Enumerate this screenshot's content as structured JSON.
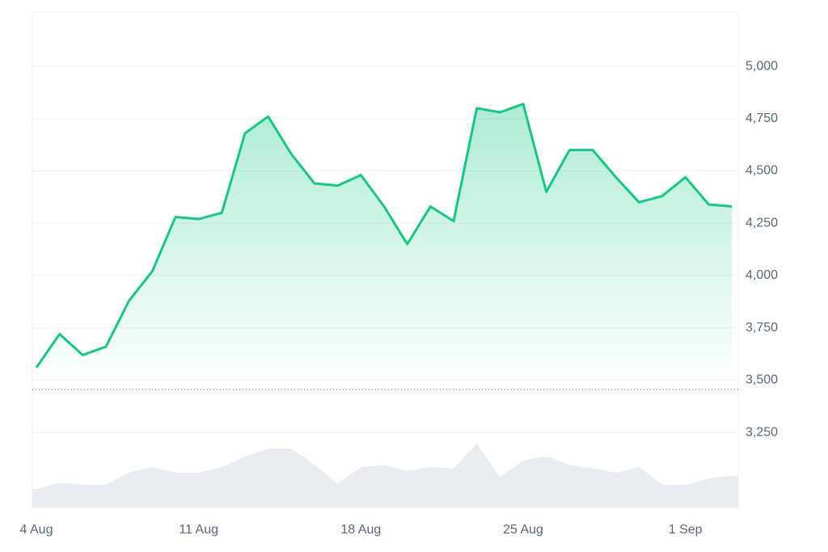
{
  "chart_data": {
    "type": "line",
    "categories": [
      "4 Aug",
      null,
      null,
      null,
      null,
      null,
      null,
      "11 Aug",
      null,
      null,
      null,
      null,
      null,
      null,
      "18 Aug",
      null,
      null,
      null,
      null,
      null,
      null,
      "25 Aug",
      null,
      null,
      null,
      null,
      null,
      null,
      "1 Sep",
      null,
      null
    ],
    "series": [
      {
        "color": "#16c784",
        "values": [
          3560,
          3720,
          3620,
          3660,
          3880,
          4020,
          4280,
          4270,
          4300,
          4680,
          4760,
          4580,
          4440,
          4430,
          4480,
          4330,
          4150,
          4330,
          4260,
          4800,
          4780,
          4820,
          4400,
          4600,
          4600,
          4470,
          4350,
          4380,
          4470,
          4340,
          4330
        ]
      }
    ],
    "volume": {
      "color": "#e9ecf0",
      "ylim": [
        0,
        100
      ],
      "values": [
        26,
        35,
        32,
        32,
        49,
        57,
        49,
        49,
        57,
        72,
        83,
        83,
        60,
        34,
        57,
        60,
        52,
        57,
        55,
        90,
        43,
        66,
        72,
        60,
        55,
        49,
        57,
        32,
        32,
        41,
        45
      ]
    },
    "baseline": 3455,
    "ylim": [
      2891,
      5259
    ],
    "yticks": [
      {
        "value": 3250,
        "label": "3,250"
      },
      {
        "value": 3500,
        "label": "3,500"
      },
      {
        "value": 3750,
        "label": "3,750"
      },
      {
        "value": 4000,
        "label": "4,000"
      },
      {
        "value": 4250,
        "label": "4,250"
      },
      {
        "value": 4500,
        "label": "4,500"
      },
      {
        "value": 4750,
        "label": "4,750"
      },
      {
        "value": 5000,
        "label": "5,000"
      }
    ],
    "grid": true
  }
}
